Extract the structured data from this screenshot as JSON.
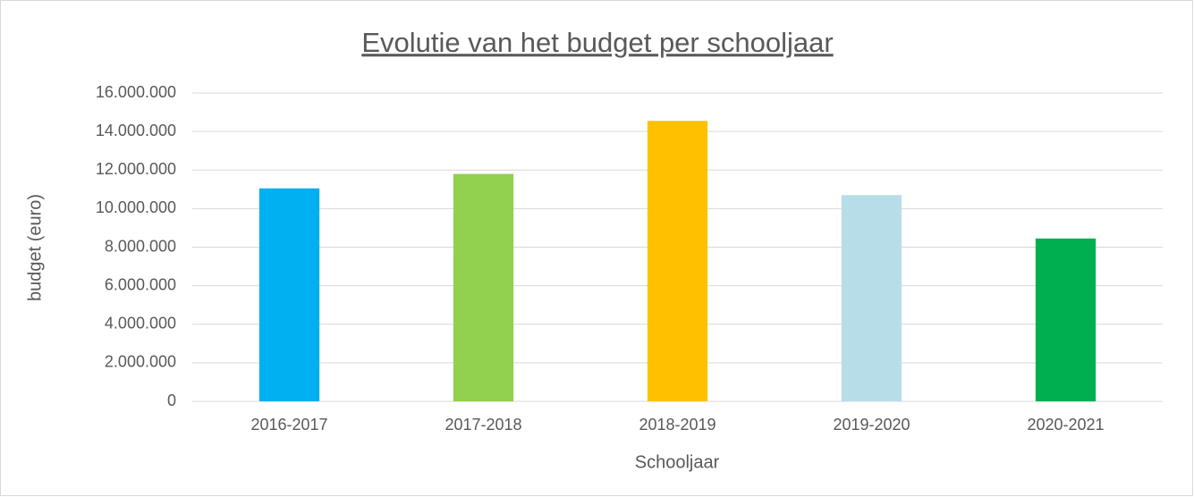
{
  "chart_data": {
    "type": "bar",
    "title": "Evolutie van het budget per schooljaar",
    "x_label": "Schooljaar",
    "y_label": "budget (euro)",
    "categories": [
      "2016-2017",
      "2017-2018",
      "2018-2019",
      "2019-2020",
      "2020-2021"
    ],
    "values": [
      11050000,
      11800000,
      14550000,
      10700000,
      8450000
    ],
    "colors": [
      "#00b0f0",
      "#92d050",
      "#ffc000",
      "#b7dee8",
      "#00b050"
    ],
    "ylim": [
      0,
      16000000
    ],
    "yticks": [
      0,
      {
        "value": 2000000,
        "label": "2.000.000"
      },
      {
        "value": 4000000,
        "label": "4.000.000"
      },
      {
        "value": 6000000,
        "label": "6.000.000"
      },
      {
        "value": 8000000,
        "label": "8.000.000"
      },
      {
        "value": 10000000,
        "label": "10.000.000"
      },
      {
        "value": 12000000,
        "label": "12.000.000"
      },
      {
        "value": 14000000,
        "label": "14.000.000"
      },
      {
        "value": 16000000,
        "label": "16.000.000"
      }
    ],
    "grid": true
  }
}
